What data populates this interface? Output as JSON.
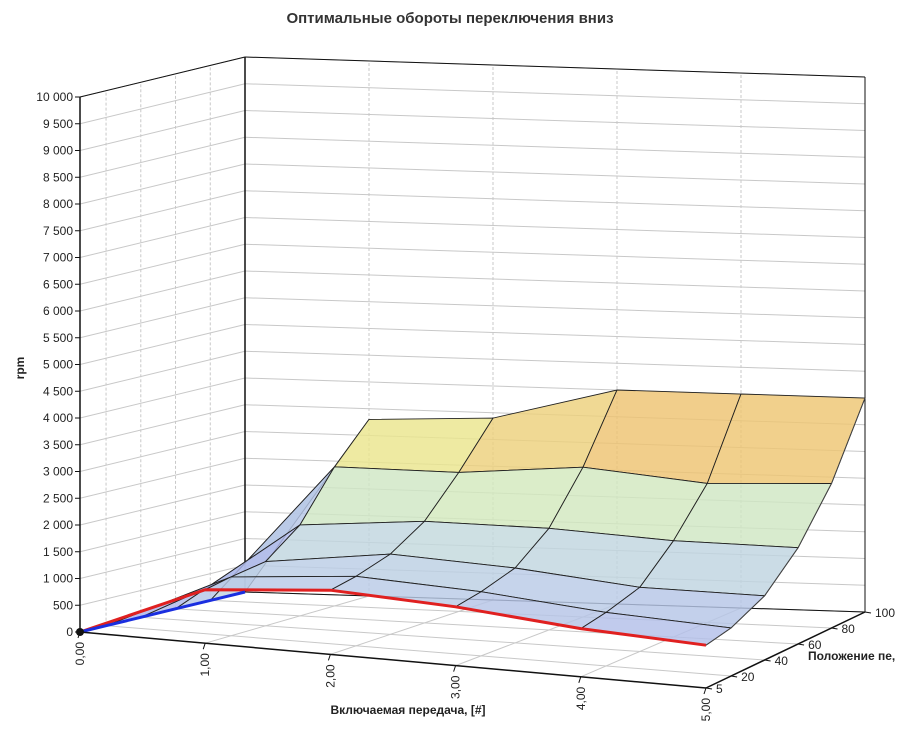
{
  "chart_data": {
    "type": "surface3d",
    "title": "Оптимальные обороты переключения вниз",
    "zlabel": "rpm",
    "xlabel": "Включаемая передача, [#]",
    "ylabel": "Положение пе,",
    "zlim": [
      0,
      10000
    ],
    "z_ticks": [
      "0",
      "500",
      "1 000",
      "1 500",
      "2 000",
      "2 500",
      "3 000",
      "3 500",
      "4 000",
      "4 500",
      "5 000",
      "5 500",
      "6 000",
      "6 500",
      "7 000",
      "7 500",
      "8 000",
      "8 500",
      "9 000",
      "9 500",
      "10 000"
    ],
    "x_ticks": [
      "0,00",
      "1,00",
      "2,00",
      "3,00",
      "4,00",
      "5,00"
    ],
    "y_ticks": [
      "5",
      "20",
      "40",
      "60",
      "80",
      "100"
    ],
    "x": [
      0,
      1,
      2,
      3,
      4,
      5
    ],
    "y": [
      5,
      20,
      40,
      60,
      80,
      100
    ],
    "z": [
      [
        0,
        1000,
        1200,
        1100,
        900,
        800
      ],
      [
        0,
        1100,
        1300,
        1200,
        1000,
        900
      ],
      [
        0,
        1200,
        1500,
        1400,
        1200,
        1200
      ],
      [
        0,
        1700,
        1900,
        1900,
        1800,
        1800
      ],
      [
        0,
        2600,
        2600,
        2800,
        2600,
        2700
      ],
      [
        0,
        3300,
        3400,
        4000,
        4000,
        4000
      ]
    ]
  }
}
